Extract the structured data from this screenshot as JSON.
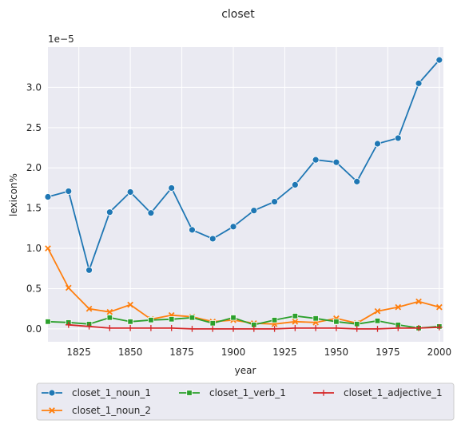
{
  "chart_data": {
    "type": "line",
    "title": "closet",
    "xlabel": "year",
    "ylabel": "lexicon%",
    "y_offset_label": "1e−5",
    "xlim": [
      1810,
      2002
    ],
    "ylim": [
      -0.16,
      3.5
    ],
    "x_ticks": [
      1825,
      1850,
      1875,
      1900,
      1925,
      1950,
      1975,
      2000
    ],
    "y_ticks": [
      0.0,
      0.5,
      1.0,
      1.5,
      2.0,
      2.5,
      3.0
    ],
    "y_tick_labels": [
      "0.0",
      "0.5",
      "1.0",
      "1.5",
      "2.0",
      "2.5",
      "3.0"
    ],
    "grid": true,
    "legend_position": "bottom",
    "x": [
      1810,
      1820,
      1830,
      1840,
      1850,
      1860,
      1870,
      1880,
      1890,
      1900,
      1910,
      1920,
      1930,
      1940,
      1950,
      1960,
      1970,
      1980,
      1990,
      2000
    ],
    "series": [
      {
        "name": "closet_1_noun_1",
        "color": "#1f77b4",
        "marker": "circle",
        "values": [
          1.64,
          1.71,
          0.73,
          1.45,
          1.7,
          1.44,
          1.75,
          1.23,
          1.12,
          1.27,
          1.47,
          1.58,
          1.79,
          2.1,
          2.07,
          1.83,
          2.3,
          2.37,
          3.05,
          3.34
        ]
      },
      {
        "name": "closet_1_noun_2",
        "color": "#ff7f0e",
        "marker": "x",
        "values": [
          1.0,
          0.51,
          0.25,
          0.21,
          0.3,
          0.12,
          0.17,
          0.15,
          0.09,
          0.11,
          0.07,
          0.06,
          0.09,
          0.08,
          0.13,
          0.07,
          0.22,
          0.27,
          0.34,
          0.27
        ]
      },
      {
        "name": "closet_1_verb_1",
        "color": "#2ca02c",
        "marker": "square",
        "values": [
          0.09,
          0.08,
          0.06,
          0.14,
          0.09,
          0.11,
          0.12,
          0.14,
          0.07,
          0.14,
          0.05,
          0.11,
          0.16,
          0.13,
          0.09,
          0.06,
          0.1,
          0.05,
          0.01,
          0.03
        ]
      },
      {
        "name": "closet_1_adjective_1",
        "color": "#d62728",
        "marker": "plus",
        "values": [
          null,
          0.05,
          0.03,
          0.01,
          0.01,
          0.01,
          0.01,
          0.0,
          0.0,
          0.0,
          0.0,
          0.0,
          0.01,
          0.01,
          0.01,
          0.0,
          0.0,
          0.01,
          0.01,
          0.02
        ]
      }
    ]
  }
}
